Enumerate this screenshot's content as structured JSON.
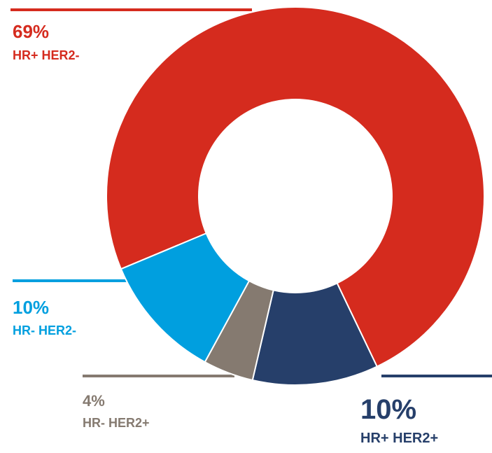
{
  "chart_data": {
    "type": "donut",
    "categories": [
      "HR+ HER2-",
      "HR+ HER2+",
      "HR- HER2+",
      "HR- HER2-"
    ],
    "values": [
      69,
      10,
      4,
      10
    ],
    "value_labels": [
      "69%",
      "10%",
      "4%",
      "10%"
    ],
    "colors": [
      "#d52b1e",
      "#263f6a",
      "#857a70",
      "#009fdf"
    ]
  }
}
